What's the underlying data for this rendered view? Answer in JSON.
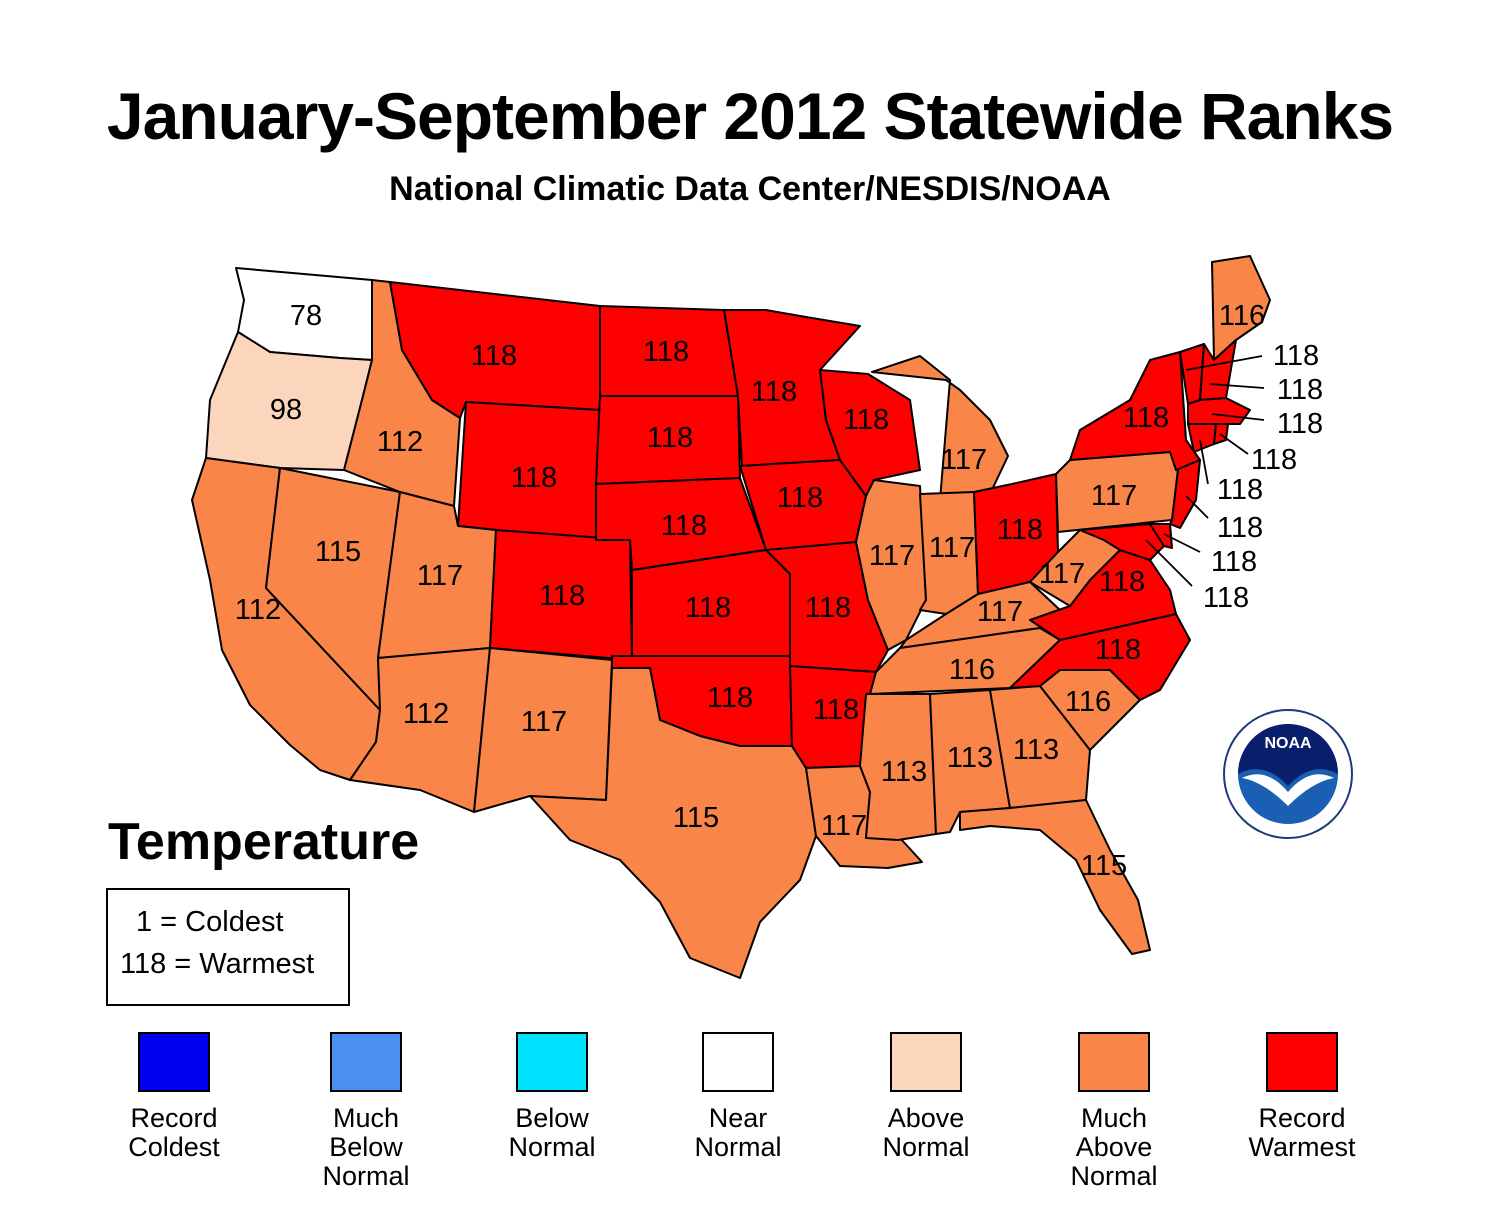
{
  "title": "January-September 2012 Statewide Ranks",
  "subtitle": "National Climatic Data Center/NESDIS/NOAA",
  "variable": "Temperature",
  "rank_key": {
    "coldest": "1 = Coldest",
    "warmest": "118 = Warmest"
  },
  "colors": {
    "record_coldest": "#0000ee",
    "much_below": "#4a90f0",
    "below": "#00e0ff",
    "near": "#ffffff",
    "above": "#fcd6bc",
    "much_above": "#f98548",
    "record_warmest": "#ff0000"
  },
  "categories": [
    {
      "id": "record_coldest",
      "label": "Record\nColdest"
    },
    {
      "id": "much_below",
      "label": "Much\nBelow\nNormal"
    },
    {
      "id": "below",
      "label": "Below\nNormal"
    },
    {
      "id": "near",
      "label": "Near\nNormal"
    },
    {
      "id": "above",
      "label": "Above\nNormal"
    },
    {
      "id": "much_above",
      "label": "Much\nAbove\nNormal"
    },
    {
      "id": "record_warmest",
      "label": "Record\nWarmest"
    }
  ],
  "states": [
    {
      "name": "WA",
      "rank": "78",
      "category": "near"
    },
    {
      "name": "OR",
      "rank": "98",
      "category": "above"
    },
    {
      "name": "CA",
      "rank": "112",
      "category": "much_above"
    },
    {
      "name": "NV",
      "rank": "115",
      "category": "much_above"
    },
    {
      "name": "ID",
      "rank": "112",
      "category": "much_above"
    },
    {
      "name": "MT",
      "rank": "118",
      "category": "record_warmest"
    },
    {
      "name": "WY",
      "rank": "118",
      "category": "record_warmest"
    },
    {
      "name": "UT",
      "rank": "117",
      "category": "much_above"
    },
    {
      "name": "AZ",
      "rank": "112",
      "category": "much_above"
    },
    {
      "name": "CO",
      "rank": "118",
      "category": "record_warmest"
    },
    {
      "name": "NM",
      "rank": "117",
      "category": "much_above"
    },
    {
      "name": "ND",
      "rank": "118",
      "category": "record_warmest"
    },
    {
      "name": "SD",
      "rank": "118",
      "category": "record_warmest"
    },
    {
      "name": "NE",
      "rank": "118",
      "category": "record_warmest"
    },
    {
      "name": "KS",
      "rank": "118",
      "category": "record_warmest"
    },
    {
      "name": "OK",
      "rank": "118",
      "category": "record_warmest"
    },
    {
      "name": "TX",
      "rank": "115",
      "category": "much_above"
    },
    {
      "name": "MN",
      "rank": "118",
      "category": "record_warmest"
    },
    {
      "name": "IA",
      "rank": "118",
      "category": "record_warmest"
    },
    {
      "name": "MO",
      "rank": "118",
      "category": "record_warmest"
    },
    {
      "name": "AR",
      "rank": "118",
      "category": "record_warmest"
    },
    {
      "name": "LA",
      "rank": "117",
      "category": "much_above"
    },
    {
      "name": "WI",
      "rank": "118",
      "category": "record_warmest"
    },
    {
      "name": "IL",
      "rank": "117",
      "category": "much_above"
    },
    {
      "name": "MI",
      "rank": "117",
      "category": "much_above"
    },
    {
      "name": "IN",
      "rank": "117",
      "category": "much_above"
    },
    {
      "name": "OH",
      "rank": "118",
      "category": "record_warmest"
    },
    {
      "name": "KY",
      "rank": "117",
      "category": "much_above"
    },
    {
      "name": "TN",
      "rank": "116",
      "category": "much_above"
    },
    {
      "name": "MS",
      "rank": "113",
      "category": "much_above"
    },
    {
      "name": "AL",
      "rank": "113",
      "category": "much_above"
    },
    {
      "name": "GA",
      "rank": "113",
      "category": "much_above"
    },
    {
      "name": "FL",
      "rank": "115",
      "category": "much_above"
    },
    {
      "name": "SC",
      "rank": "116",
      "category": "much_above"
    },
    {
      "name": "NC",
      "rank": "118",
      "category": "record_warmest"
    },
    {
      "name": "VA",
      "rank": "118",
      "category": "record_warmest"
    },
    {
      "name": "WV",
      "rank": "117",
      "category": "much_above"
    },
    {
      "name": "PA",
      "rank": "117",
      "category": "much_above"
    },
    {
      "name": "NY",
      "rank": "118",
      "category": "record_warmest"
    },
    {
      "name": "ME",
      "rank": "116",
      "category": "much_above"
    },
    {
      "name": "VT",
      "rank": "118",
      "category": "record_warmest"
    },
    {
      "name": "NH",
      "rank": "118",
      "category": "record_warmest"
    },
    {
      "name": "MA",
      "rank": "118",
      "category": "record_warmest"
    },
    {
      "name": "RI",
      "rank": "118",
      "category": "record_warmest"
    },
    {
      "name": "CT",
      "rank": "118",
      "category": "record_warmest"
    },
    {
      "name": "NJ",
      "rank": "118",
      "category": "record_warmest"
    },
    {
      "name": "DE",
      "rank": "118",
      "category": "record_warmest"
    },
    {
      "name": "MD",
      "rank": "118",
      "category": "record_warmest"
    }
  ],
  "logo": {
    "name": "noaa-logo",
    "text": "NOAA"
  }
}
